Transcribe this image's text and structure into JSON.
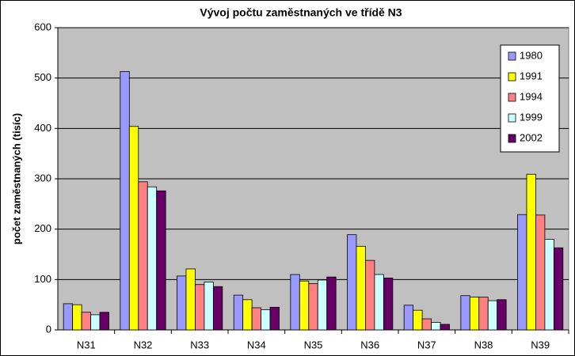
{
  "chart_data": {
    "type": "bar",
    "title": "Vývoj počtu zaměstnaných ve třídě N3",
    "y_label": "počet zaměstnaných (tisíc)",
    "categories": [
      "N31",
      "N32",
      "N33",
      "N34",
      "N35",
      "N36",
      "N37",
      "N38",
      "N39"
    ],
    "series": [
      {
        "name": "1980",
        "color": "#9999ff",
        "values": [
          52,
          513,
          107,
          69,
          110,
          189,
          49,
          68,
          229
        ]
      },
      {
        "name": "1991",
        "color": "#ffff00",
        "values": [
          50,
          404,
          121,
          60,
          97,
          166,
          39,
          65,
          309
        ]
      },
      {
        "name": "1994",
        "color": "#ff8080",
        "values": [
          35,
          294,
          90,
          44,
          92,
          138,
          22,
          65,
          228
        ]
      },
      {
        "name": "1999",
        "color": "#ccffff",
        "values": [
          30,
          284,
          95,
          40,
          99,
          110,
          15,
          58,
          180
        ]
      },
      {
        "name": "2002",
        "color": "#660066",
        "values": [
          35,
          276,
          86,
          45,
          105,
          103,
          11,
          60,
          163
        ]
      }
    ],
    "ylim": [
      0,
      600
    ],
    "yticks": [
      0,
      100,
      200,
      300,
      400,
      500,
      600
    ],
    "grid": true,
    "legend": "top-right"
  }
}
